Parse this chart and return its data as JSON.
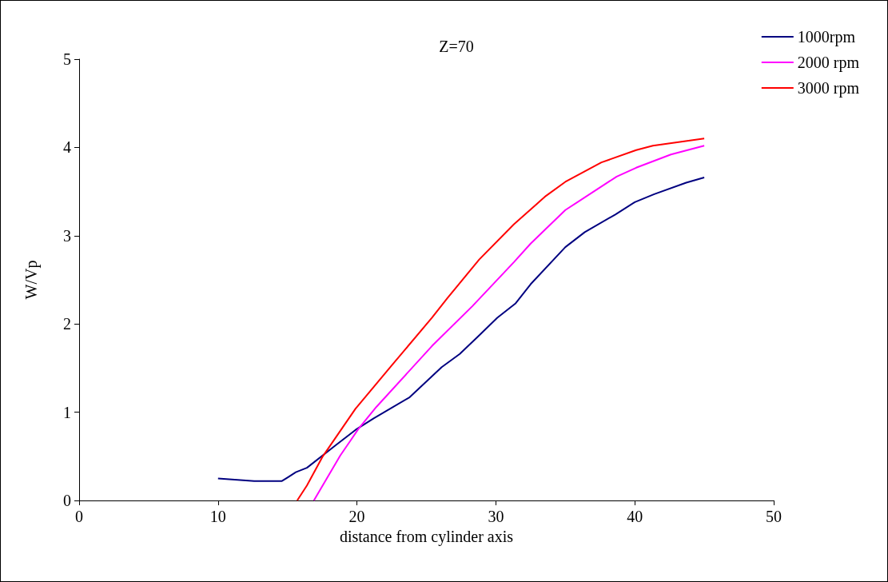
{
  "chart_data": {
    "type": "line",
    "title": "Z=70",
    "xlabel": "distance from cylinder axis",
    "ylabel": "W/Vp",
    "xlim": [
      0,
      50
    ],
    "xticks": [
      0,
      10,
      20,
      30,
      40,
      50
    ],
    "ylim": [
      0,
      5
    ],
    "yticks": [
      0,
      1,
      2,
      3,
      4,
      5
    ],
    "grid": false,
    "legend": "top right",
    "marker": "none",
    "line_style": "solid",
    "series": [
      {
        "name": "1000rpm",
        "color": "#000080",
        "x": [
          10,
          12.6,
          14.6,
          15,
          15.6,
          16.4,
          18.5,
          19.9,
          21.2,
          23.8,
          26.1,
          27.4,
          28.8,
          30.1,
          31.4,
          32.5,
          35,
          36.4,
          38.6,
          40,
          41.4,
          43.7,
          45
        ],
        "values": [
          0.25,
          0.22,
          0.22,
          0.26,
          0.32,
          0.37,
          0.63,
          0.8,
          0.93,
          1.17,
          1.51,
          1.66,
          1.87,
          2.07,
          2.23,
          2.45,
          2.87,
          3.04,
          3.24,
          3.38,
          3.47,
          3.6,
          3.66
        ]
      },
      {
        "name": "2000 rpm",
        "color": "#ff00ff",
        "x": [
          16.9,
          18.8,
          19.5,
          20.1,
          21.4,
          25.4,
          28.3,
          31.3,
          32.5,
          35,
          38.7,
          40.1,
          42.6,
          45
        ],
        "values": [
          0,
          0.51,
          0.67,
          0.81,
          1.06,
          1.75,
          2.2,
          2.7,
          2.91,
          3.29,
          3.67,
          3.77,
          3.92,
          4.02
        ]
      },
      {
        "name": "3000 rpm",
        "color": "#ff0000",
        "x": [
          15.7,
          16.4,
          17.5,
          19.9,
          22.5,
          25.4,
          26.5,
          28.8,
          31.3,
          33.6,
          35,
          37.6,
          40.1,
          41.3,
          45
        ],
        "values": [
          0,
          0.17,
          0.49,
          1.04,
          1.53,
          2.07,
          2.29,
          2.73,
          3.13,
          3.45,
          3.61,
          3.83,
          3.97,
          4.02,
          4.1
        ]
      }
    ]
  }
}
